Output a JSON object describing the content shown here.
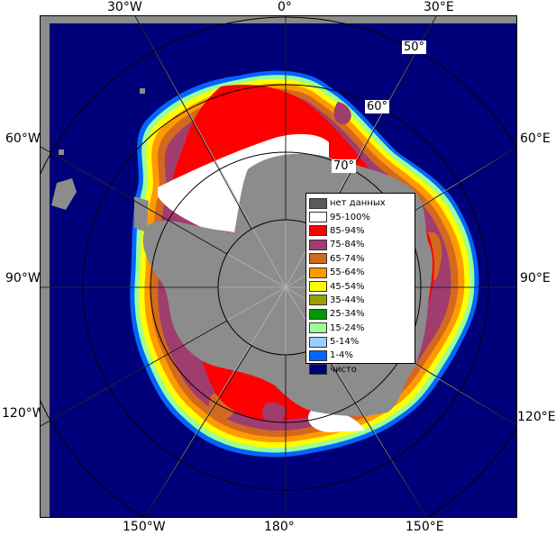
{
  "lon_labels": {
    "w30": "30°W",
    "zero": "0°",
    "e30": "30°E",
    "w60": "60°W",
    "e60": "60°E",
    "w90": "90°W",
    "e90": "90°E",
    "w120": "120°W",
    "e120": "120°E",
    "w150": "150°W",
    "d180": "180°",
    "e150": "150°E"
  },
  "lat_labels": {
    "lat50": "50°",
    "lat60": "60°",
    "lat70": "70°"
  },
  "legend": [
    {
      "label": "нет данных",
      "color": "#5a5a5a"
    },
    {
      "label": "95-100%",
      "color": "#ffffff"
    },
    {
      "label": "85-94%",
      "color": "#ff0000"
    },
    {
      "label": "75-84%",
      "color": "#a03c6e"
    },
    {
      "label": "65-74%",
      "color": "#d2691e"
    },
    {
      "label": "55-64%",
      "color": "#ff9900"
    },
    {
      "label": "45-54%",
      "color": "#ffff00"
    },
    {
      "label": "35-44%",
      "color": "#99a000"
    },
    {
      "label": "25-34%",
      "color": "#009900"
    },
    {
      "label": "15-24%",
      "color": "#99ff99"
    },
    {
      "label": "5-14%",
      "color": "#99ccff"
    },
    {
      "label": "1-4%",
      "color": "#0066ff"
    },
    {
      "label": "чисто",
      "color": "#00007a"
    }
  ],
  "colors": {
    "ocean": "#00007a",
    "land": "#8c8c8c",
    "graticule": "#b4b4b4",
    "ring": "#000000"
  }
}
